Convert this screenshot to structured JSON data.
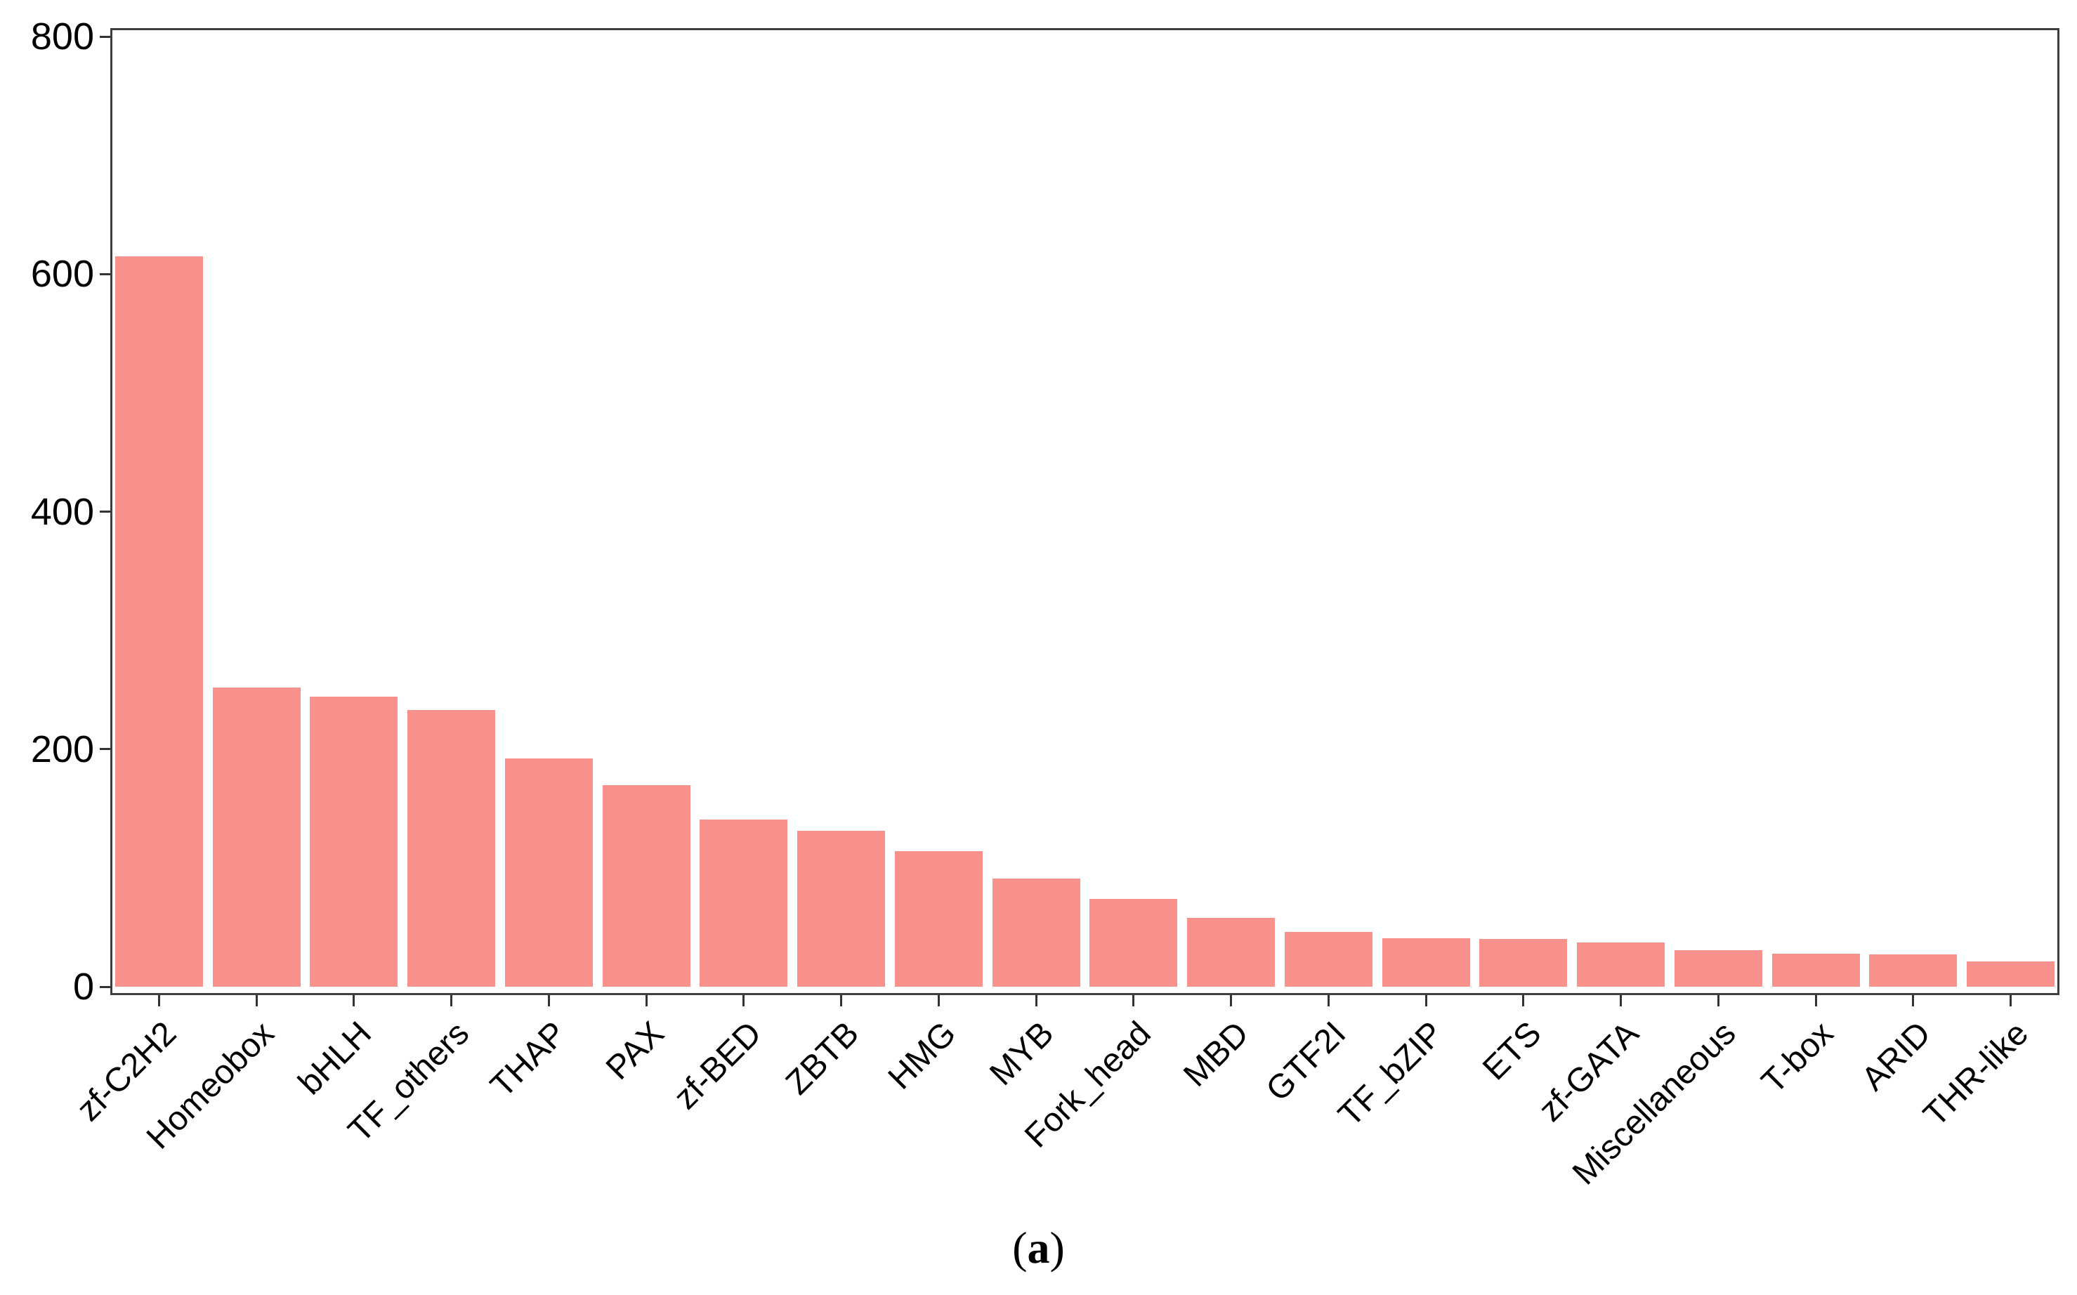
{
  "figure": {
    "caption_open": "(",
    "caption_letter": "a",
    "caption_close": ")"
  },
  "chart_data": {
    "type": "bar",
    "title": "",
    "xlabel": "",
    "ylabel": "",
    "categories": [
      "zf-C2H2",
      "Homeobox",
      "bHLH",
      "TF_others",
      "THAP",
      "PAX",
      "zf-BED",
      "ZBTB",
      "HMG",
      "MYB",
      "Fork_head",
      "MBD",
      "GTF2I",
      "TF_bZIP",
      "ETS",
      "zf-GATA",
      "Miscellaneous",
      "T-box",
      "ARID",
      "THR-like"
    ],
    "values": [
      615,
      252,
      244,
      233,
      192,
      170,
      141,
      131,
      114,
      91,
      74,
      58,
      46,
      41,
      40,
      37,
      31,
      28,
      27,
      21
    ],
    "yticks": [
      0,
      200,
      400,
      600,
      800
    ],
    "ylim": [
      0,
      807
    ],
    "grid": "off",
    "legend": "none",
    "x_tick_label_rotation_deg": 45,
    "bar_color": "#F8918B",
    "axis_color": "#3F3F3F",
    "tick_color": "#333333",
    "text_color": "#000000"
  }
}
